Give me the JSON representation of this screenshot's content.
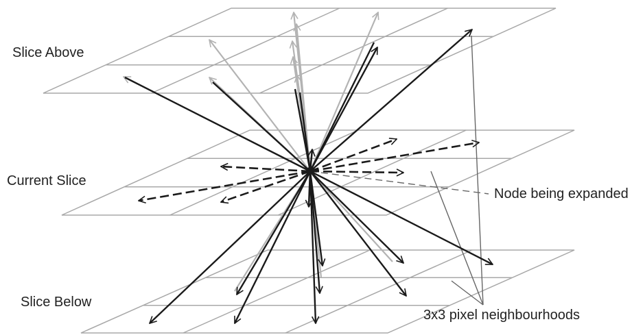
{
  "labels": {
    "slice_above": "Slice Above",
    "current_slice": "Current Slice",
    "slice_below": "Slice Below",
    "node_expanded": "Node being expanded",
    "neighbourhoods": "3x3 pixel neighbourhoods"
  },
  "colors": {
    "grid": "#a8a8a8",
    "arrow_dark": "#1a1a1a",
    "arrow_light": "#b3b3b3",
    "pointer": "#666666",
    "text": "#222222"
  }
}
